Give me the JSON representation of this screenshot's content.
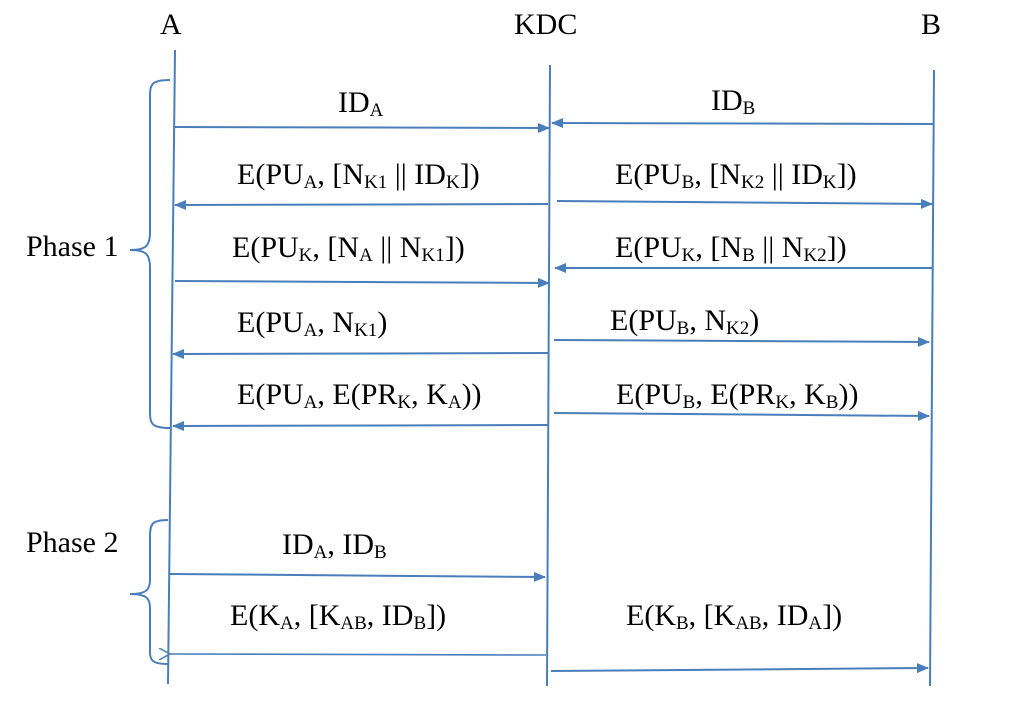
{
  "participants": {
    "a": "A",
    "kdc": "KDC",
    "b": "B"
  },
  "phases": {
    "phase1": "Phase 1",
    "phase2": "Phase 2"
  },
  "messages": {
    "m01": [
      {
        "t": "ID"
      },
      {
        "s": "A"
      }
    ],
    "m02": [
      {
        "t": "ID"
      },
      {
        "s": "B"
      }
    ],
    "m03": [
      {
        "t": "E(PU"
      },
      {
        "s": "A"
      },
      {
        "t": ", [N"
      },
      {
        "s": "K1"
      },
      {
        "t": " || ID"
      },
      {
        "s": "K"
      },
      {
        "t": "])"
      }
    ],
    "m04": [
      {
        "t": "E(PU"
      },
      {
        "s": "B"
      },
      {
        "t": ", [N"
      },
      {
        "s": "K2"
      },
      {
        "t": " || ID"
      },
      {
        "s": "K"
      },
      {
        "t": "])"
      }
    ],
    "m05": [
      {
        "t": "E(PU"
      },
      {
        "s": "K"
      },
      {
        "t": ", [N"
      },
      {
        "s": "A"
      },
      {
        "t": " || N"
      },
      {
        "s": "K1"
      },
      {
        "t": "])"
      }
    ],
    "m06": [
      {
        "t": "E(PU"
      },
      {
        "s": "K"
      },
      {
        "t": ", [N"
      },
      {
        "s": "B"
      },
      {
        "t": " || N"
      },
      {
        "s": "K2"
      },
      {
        "t": "])"
      }
    ],
    "m07": [
      {
        "t": "E(PU"
      },
      {
        "s": "A"
      },
      {
        "t": ", N"
      },
      {
        "s": "K1"
      },
      {
        "t": ")"
      }
    ],
    "m08": [
      {
        "t": "E(PU"
      },
      {
        "s": "B"
      },
      {
        "t": ", N"
      },
      {
        "s": "K2"
      },
      {
        "t": ")"
      }
    ],
    "m09": [
      {
        "t": "E(PU"
      },
      {
        "s": "A"
      },
      {
        "t": ", E(PR"
      },
      {
        "s": "K"
      },
      {
        "t": ", K"
      },
      {
        "s": "A"
      },
      {
        "t": "))"
      }
    ],
    "m10": [
      {
        "t": "E(PU"
      },
      {
        "s": "B"
      },
      {
        "t": ", E(PR"
      },
      {
        "s": "K"
      },
      {
        "t": ", K"
      },
      {
        "s": "B"
      },
      {
        "t": "))"
      }
    ],
    "m11": [
      {
        "t": "ID"
      },
      {
        "s": "A"
      },
      {
        "t": ",  ID"
      },
      {
        "s": "B"
      }
    ],
    "m12": [
      {
        "t": "E(K"
      },
      {
        "s": "A"
      },
      {
        "t": ", [K"
      },
      {
        "s": "AB"
      },
      {
        "t": ", ID"
      },
      {
        "s": "B"
      },
      {
        "t": "])"
      }
    ],
    "m13": [
      {
        "t": "E(K"
      },
      {
        "s": "B"
      },
      {
        "t": ", [K"
      },
      {
        "s": "AB"
      },
      {
        "t": ", ID"
      },
      {
        "s": "A"
      },
      {
        "t": "])"
      }
    ]
  },
  "colors": {
    "line": "#4a7ebb",
    "text": "#000000",
    "background": "#ffffff"
  }
}
